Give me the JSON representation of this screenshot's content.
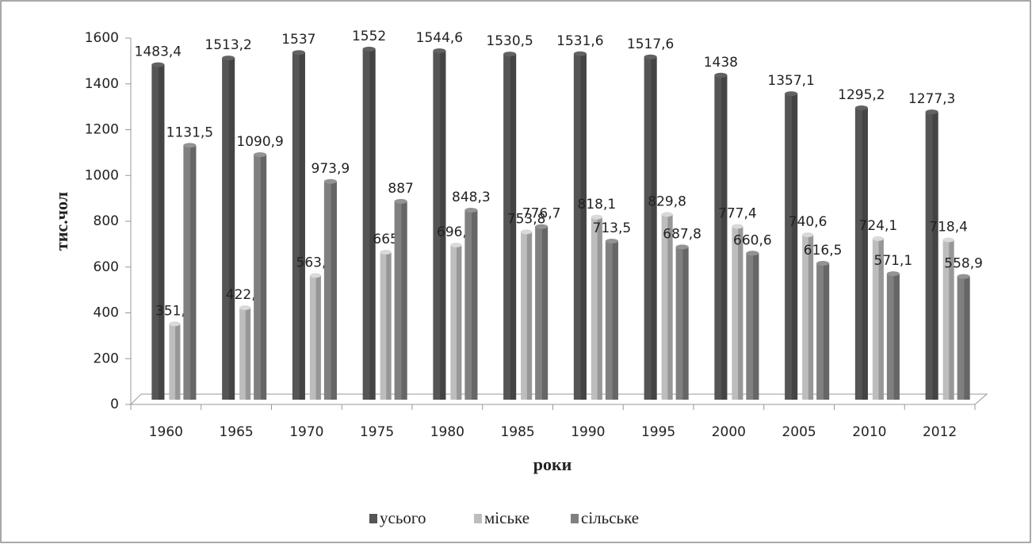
{
  "chart_data": {
    "type": "bar",
    "x_label": "роки",
    "y_label": "тис.чол",
    "categories": [
      "1960",
      "1965",
      "1970",
      "1975",
      "1980",
      "1985",
      "1990",
      "1995",
      "2000",
      "2005",
      "2010",
      "2012"
    ],
    "series": [
      {
        "name": "усього",
        "color": "#555555",
        "values": [
          1483.4,
          1513.2,
          1537,
          1552,
          1544.6,
          1530.5,
          1531.6,
          1517.6,
          1438,
          1357.1,
          1295.2,
          1277.3
        ],
        "value_labels": [
          "1483,4",
          "1513,2",
          "1537",
          "1552",
          "1544,6",
          "1530,5",
          "1531,6",
          "1517,6",
          "1438",
          "1357,1",
          "1295,2",
          "1277,3"
        ]
      },
      {
        "name": "міське",
        "color": "#bdbdbd",
        "values": [
          351.9,
          422.3,
          563.1,
          665,
          696.3,
          753.8,
          818.1,
          829.8,
          777.4,
          740.6,
          724.1,
          718.4
        ],
        "value_labels": [
          "351,9",
          "422,3",
          "563,1",
          "665",
          "696,3",
          "753,8",
          "818,1",
          "829,8",
          "777,4",
          "740,6",
          "724,1",
          "718,4"
        ]
      },
      {
        "name": "сільське",
        "color": "#808080",
        "values": [
          1131.5,
          1090.9,
          973.9,
          887,
          848.3,
          776.7,
          713.5,
          687.8,
          660.6,
          616.5,
          571.1,
          558.9
        ],
        "value_labels": [
          "1131,5",
          "1090,9",
          "973,9",
          "887",
          "848,3",
          "776,7",
          "713,5",
          "687,8",
          "660,6",
          "616,5",
          "571,1",
          "558,9"
        ]
      }
    ],
    "ylim": [
      0,
      1600
    ],
    "yticks": [
      0,
      200,
      400,
      600,
      800,
      1000,
      1200,
      1400,
      1600
    ],
    "legend": "bottom"
  }
}
